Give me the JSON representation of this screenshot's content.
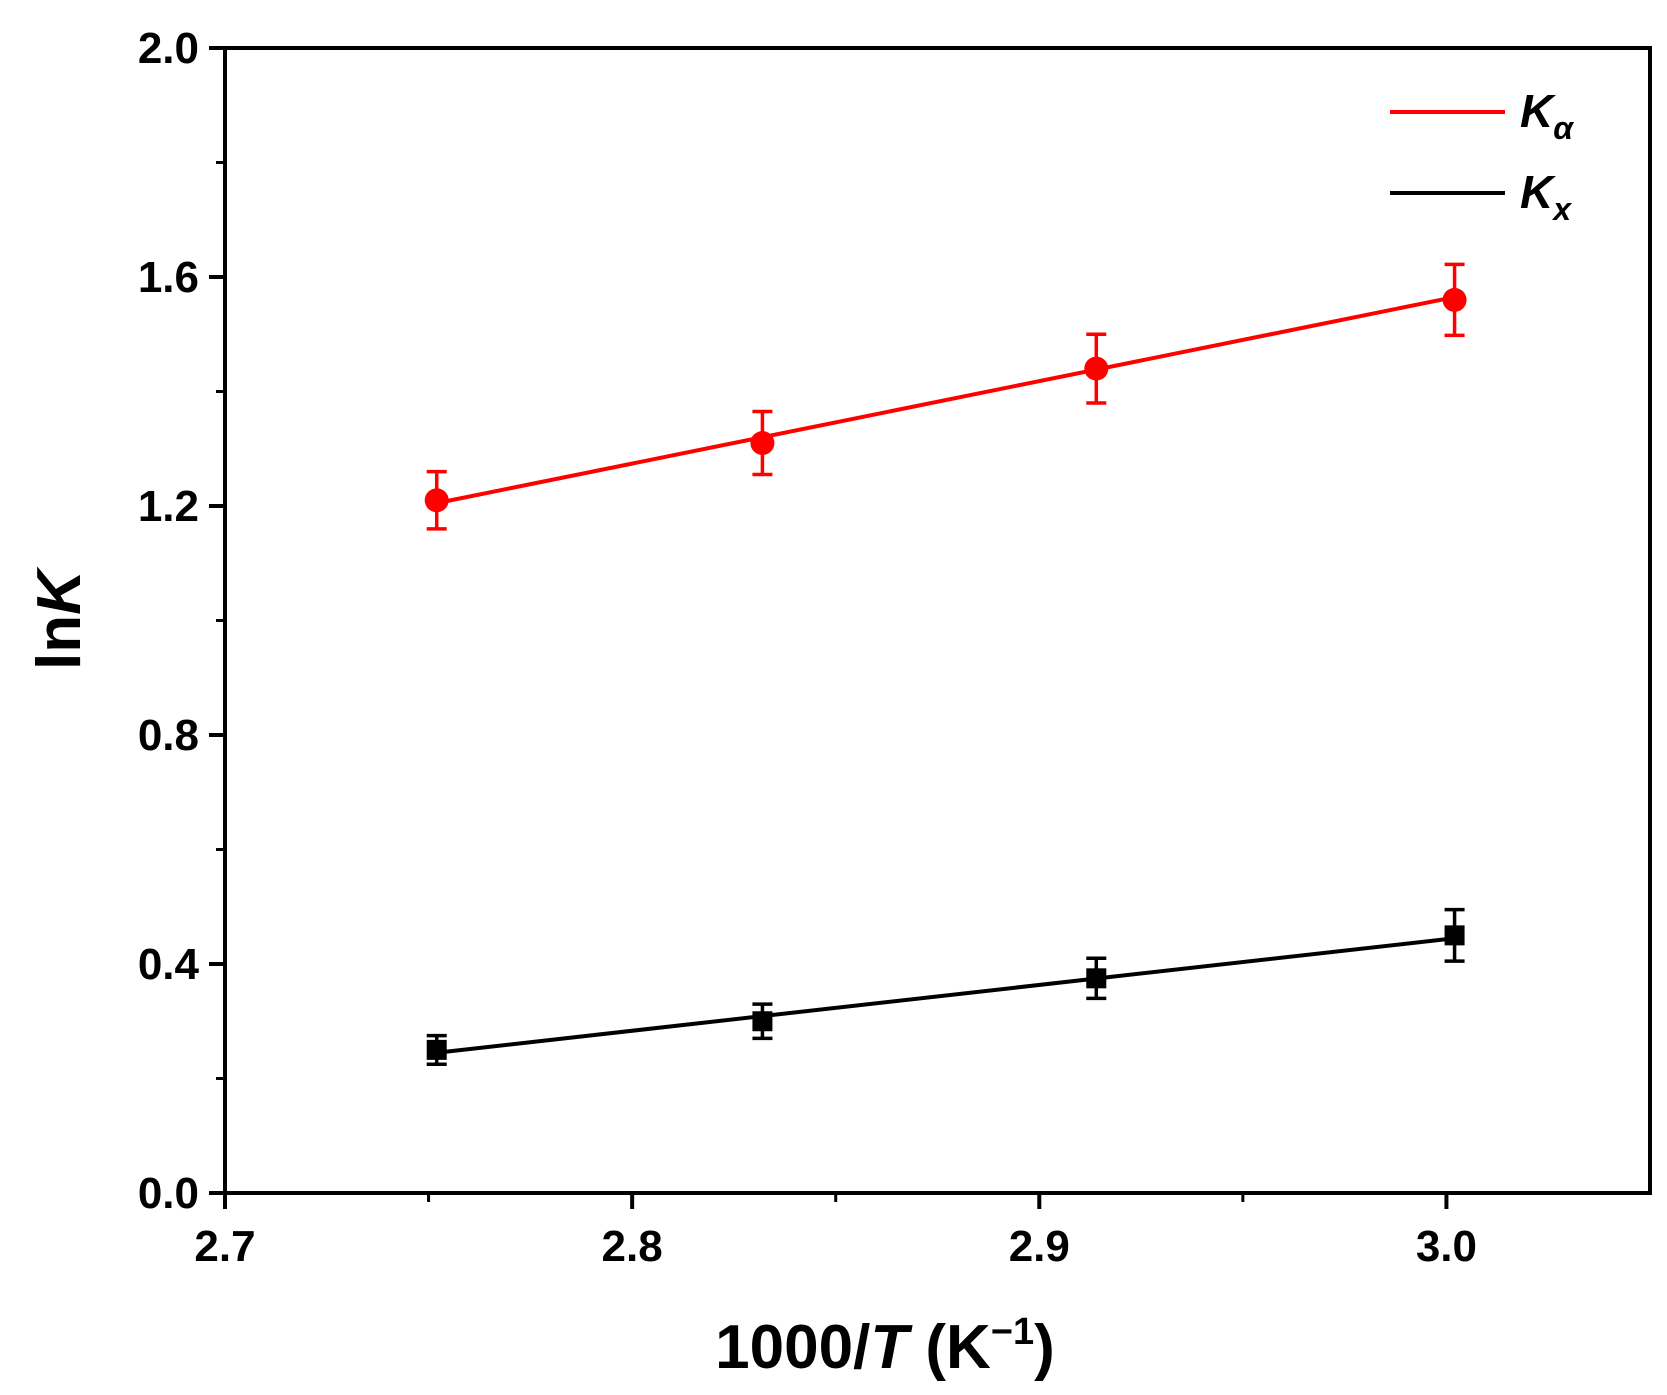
{
  "chart_data": {
    "type": "line",
    "xlabel": {
      "prefix": "1000/",
      "var": "T",
      "unit_open": " (K",
      "exp": "−1",
      "unit_close": ")"
    },
    "ylabel": {
      "prefix": "ln",
      "var": "K"
    },
    "xlim": [
      2.7,
      3.05
    ],
    "ylim": [
      0.0,
      2.0
    ],
    "xticks": [
      2.7,
      2.8,
      2.9,
      3.0
    ],
    "xtick_labels": [
      "2.7",
      "2.8",
      "2.9",
      "3.0"
    ],
    "yticks": [
      0.0,
      0.4,
      0.8,
      1.2,
      1.6,
      2.0
    ],
    "ytick_labels": [
      "0.0",
      "0.4",
      "0.8",
      "1.2",
      "1.6",
      "2.0"
    ],
    "grid": false,
    "legend_position": "top-right",
    "series": [
      {
        "name": "Kα",
        "legend": {
          "main": "K",
          "sub": "α"
        },
        "color": "#ff0000",
        "marker": "circle",
        "x": [
          2.752,
          2.832,
          2.914,
          3.002
        ],
        "y": [
          1.21,
          1.31,
          1.44,
          1.56
        ],
        "err": [
          0.05,
          0.055,
          0.06,
          0.062
        ],
        "fit": {
          "x": [
            2.752,
            3.002
          ],
          "y": [
            1.205,
            1.565
          ]
        }
      },
      {
        "name": "Kx",
        "legend": {
          "main": "K",
          "sub": "x"
        },
        "color": "#000000",
        "marker": "square",
        "x": [
          2.752,
          2.832,
          2.914,
          3.002
        ],
        "y": [
          0.25,
          0.3,
          0.375,
          0.45
        ],
        "err": [
          0.025,
          0.03,
          0.035,
          0.045
        ],
        "fit": {
          "x": [
            2.752,
            3.002
          ],
          "y": [
            0.245,
            0.445
          ]
        }
      }
    ]
  }
}
